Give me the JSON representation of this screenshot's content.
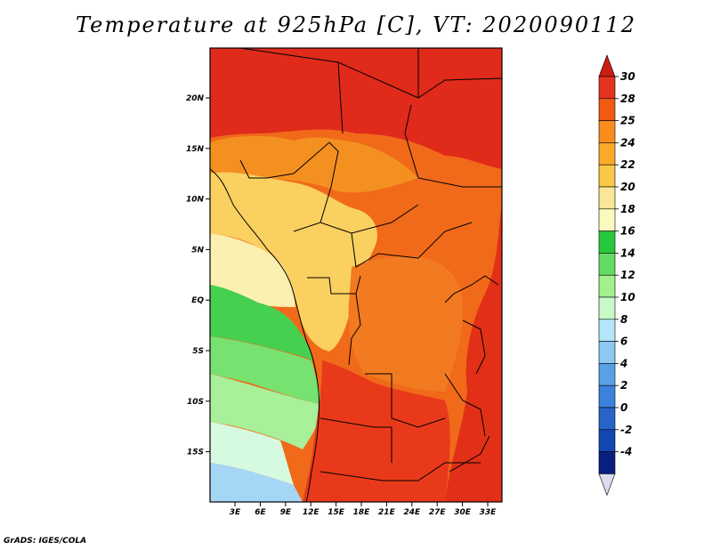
{
  "title": "Temperature at 925hPa [C], VT: 2020090112",
  "credit": "GrADS: IGES/COLA",
  "map": {
    "lat_labels": [
      "20N",
      "15N",
      "10N",
      "5N",
      "EQ",
      "5S",
      "10S",
      "15S"
    ],
    "lon_labels": [
      "3E",
      "6E",
      "9E",
      "12E",
      "15E",
      "18E",
      "21E",
      "24E",
      "27E",
      "30E",
      "33E"
    ],
    "region": "Central Africa",
    "colors": {
      "sea": "#9fd0f5",
      "land_hot": "#e02a1a"
    }
  },
  "colorbar": {
    "labels": [
      "30",
      "28",
      "25",
      "24",
      "22",
      "20",
      "18",
      "16",
      "14",
      "12",
      "10",
      "8",
      "6",
      "4",
      "2",
      "0",
      "-2",
      "-4"
    ],
    "colors": [
      "#e63220",
      "#f05a14",
      "#fa8c1e",
      "#faaa28",
      "#fac846",
      "#fae696",
      "#fafabe",
      "#28c83c",
      "#64dc64",
      "#a0f08c",
      "#c8fac8",
      "#b4e6fa",
      "#8cc8f0",
      "#5aa0e6",
      "#3c82dc",
      "#2864c8",
      "#1446b4",
      "#0a1e82"
    ],
    "top_cap_color": "#c81e14",
    "bottom_cap_color": "#dcdcf0"
  }
}
